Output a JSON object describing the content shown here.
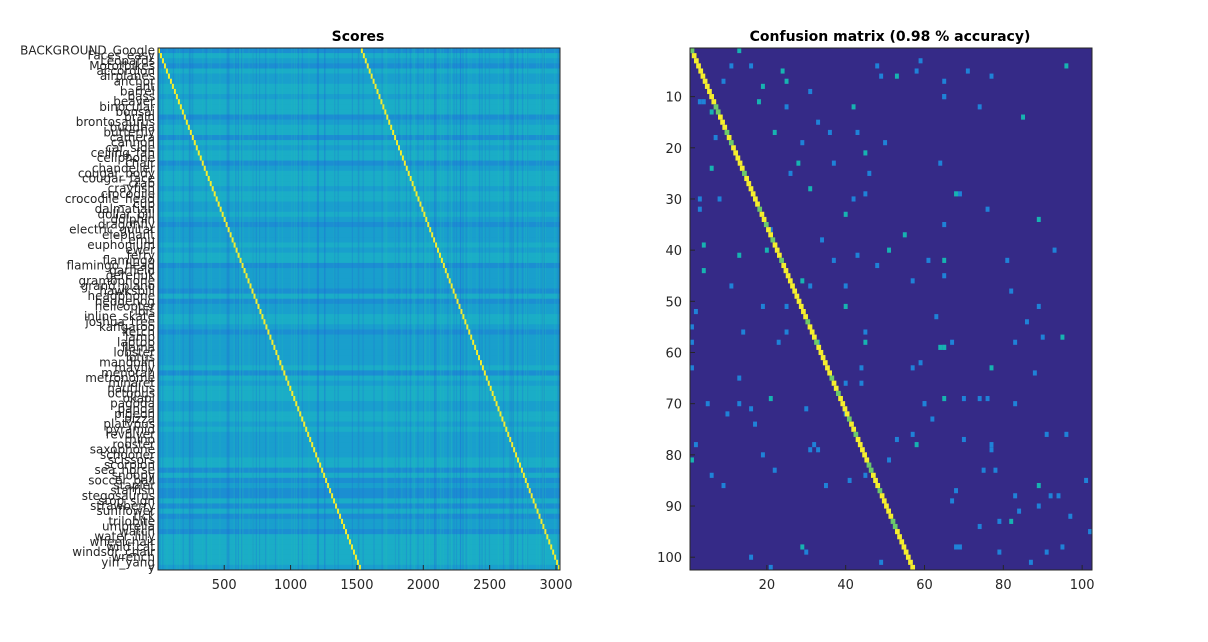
{
  "chart_data": [
    {
      "type": "heatmap",
      "title": "Scores",
      "x_ticks": [
        500,
        1000,
        1500,
        2000,
        2500,
        3000
      ],
      "xlim": [
        1,
        3030
      ],
      "rows": 102,
      "y_labels": [
        "BACKGROUND_Google",
        "Faces_easy",
        "Leopards",
        "Motorbikes",
        "accordion",
        "airplanes",
        "anchor",
        "ant",
        "barrel",
        "bass",
        "beaver",
        "binocular",
        "bonsai",
        "brain",
        "brontosaurus",
        "buddha",
        "butterfly",
        "camera",
        "cannon",
        "car_side",
        "ceiling_fan",
        "cellphone",
        "chair",
        "chandelier",
        "cougar_body",
        "cougar_face",
        "crab",
        "crayfish",
        "crocodile",
        "crocodile_head",
        "cup",
        "dalmatian",
        "dollar_bill",
        "dolphin",
        "dragonfly",
        "electric_guitar",
        "elephant",
        "emu",
        "euphonium",
        "ewer",
        "ferry",
        "flamingo",
        "flamingo_head",
        "garfield",
        "gerenuk",
        "gramophone",
        "grand_piano",
        "hawksbill",
        "headphone",
        "hedgehog",
        "helicopter",
        "ibis",
        "inline_skate",
        "joshua_tree",
        "kangaroo",
        "ketch",
        "lamp",
        "laptop",
        "llama",
        "lobster",
        "lotus",
        "mandolin",
        "mayfly",
        "menorah",
        "metronome",
        "minaret",
        "nautilus",
        "octopus",
        "okapi",
        "pagoda",
        "panda",
        "pigeon",
        "pizza",
        "platypus",
        "pyramid",
        "revolver",
        "rhino",
        "rooster",
        "saxophone",
        "schooner",
        "scissors",
        "scorpion",
        "sea_horse",
        "snoopy",
        "soccer_ball",
        "stapler",
        "starfish",
        "stegosaurus",
        "stop_sign",
        "strawberry",
        "sunflower",
        "tick",
        "trilobite",
        "umbrella",
        "watch",
        "water_lilly",
        "wheelchair",
        "wild_cat",
        "windsor_chair",
        "wrench",
        "yin_yang",
        "y"
      ],
      "colors": {
        "low": "#1f67d8",
        "mid": "#1aa8c9",
        "high": "#f5ee2e"
      }
    },
    {
      "type": "heatmap",
      "title": "Confusion matrix (0.98 % accuracy)",
      "x_ticks": [
        20,
        40,
        60,
        80,
        100
      ],
      "y_ticks": [
        10,
        20,
        30,
        40,
        50,
        60,
        70,
        80,
        90,
        100
      ],
      "xlim": [
        0.5,
        102.5
      ],
      "ylim": [
        0.5,
        102.5
      ],
      "size": 102,
      "diagonal_end_column": 57,
      "colors": {
        "background": "#352a87",
        "weak": "#1f82d8",
        "mid": "#17b3b1",
        "high": "#f5ee2e"
      }
    }
  ]
}
